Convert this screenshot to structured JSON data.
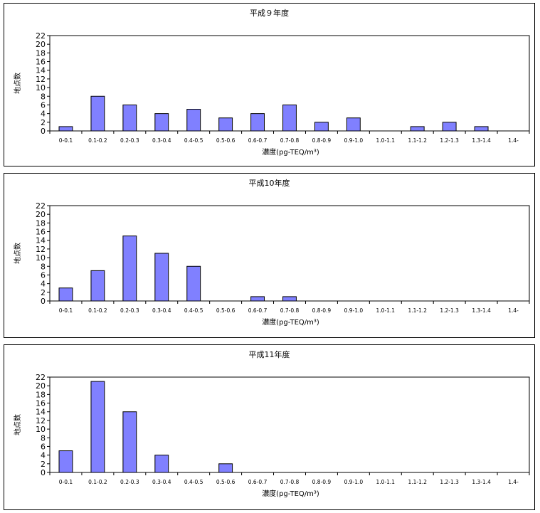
{
  "chart_data": [
    {
      "type": "bar",
      "title": "平成９年度",
      "xlabel": "濃度(pg-TEQ/m³)",
      "ylabel": "地点数",
      "ylim": [
        0,
        22
      ],
      "yticks": [
        0,
        2,
        4,
        6,
        8,
        10,
        12,
        14,
        16,
        18,
        20,
        22
      ],
      "categories": [
        "0-0.1",
        "0.1-0.2",
        "0.2-0.3",
        "0.3-0.4",
        "0.4-0.5",
        "0.5-0.6",
        "0.6-0.7",
        "0.7-0.8",
        "0.8-0.9",
        "0.9-1.0",
        "1.0-1.1",
        "1.1-1.2",
        "1.2-1.3",
        "1.3-1.4",
        "1.4-"
      ],
      "values": [
        1,
        8,
        6,
        4,
        5,
        3,
        4,
        6,
        2,
        3,
        0,
        1,
        2,
        1,
        0
      ],
      "bar_color": "#8080ff",
      "grid": false
    },
    {
      "type": "bar",
      "title": "平成10年度",
      "xlabel": "濃度(pg-TEQ/m³)",
      "ylabel": "地点数",
      "ylim": [
        0,
        22
      ],
      "yticks": [
        0,
        2,
        4,
        6,
        8,
        10,
        12,
        14,
        16,
        18,
        20,
        22
      ],
      "categories": [
        "0-0.1",
        "0.1-0.2",
        "0.2-0.3",
        "0.3-0.4",
        "0.4-0.5",
        "0.5-0.6",
        "0.6-0.7",
        "0.7-0.8",
        "0.8-0.9",
        "0.9-1.0",
        "1.0-1.1",
        "1.1-1.2",
        "1.2-1.3",
        "1.3-1.4",
        "1.4-"
      ],
      "values": [
        3,
        7,
        15,
        11,
        8,
        0,
        1,
        1,
        0,
        0,
        0,
        0,
        0,
        0,
        0
      ],
      "bar_color": "#8080ff",
      "grid": false
    },
    {
      "type": "bar",
      "title": "平成11年度",
      "xlabel": "濃度(pg-TEQ/m³)",
      "ylabel": "地点数",
      "ylim": [
        0,
        22
      ],
      "yticks": [
        0,
        2,
        4,
        6,
        8,
        10,
        12,
        14,
        16,
        18,
        20,
        22
      ],
      "categories": [
        "0-0.1",
        "0.1-0.2",
        "0.2-0.3",
        "0.3-0.4",
        "0.4-0.5",
        "0.5-0.6",
        "0.6-0.7",
        "0.7-0.8",
        "0.8-0.9",
        "0.9-1.0",
        "1.0-1.1",
        "1.1-1.2",
        "1.2-1.3",
        "1.3-1.4",
        "1.4-"
      ],
      "values": [
        5,
        21,
        14,
        4,
        0,
        2,
        0,
        0,
        0,
        0,
        0,
        0,
        0,
        0,
        0
      ],
      "bar_color": "#8080ff",
      "grid": false
    }
  ]
}
